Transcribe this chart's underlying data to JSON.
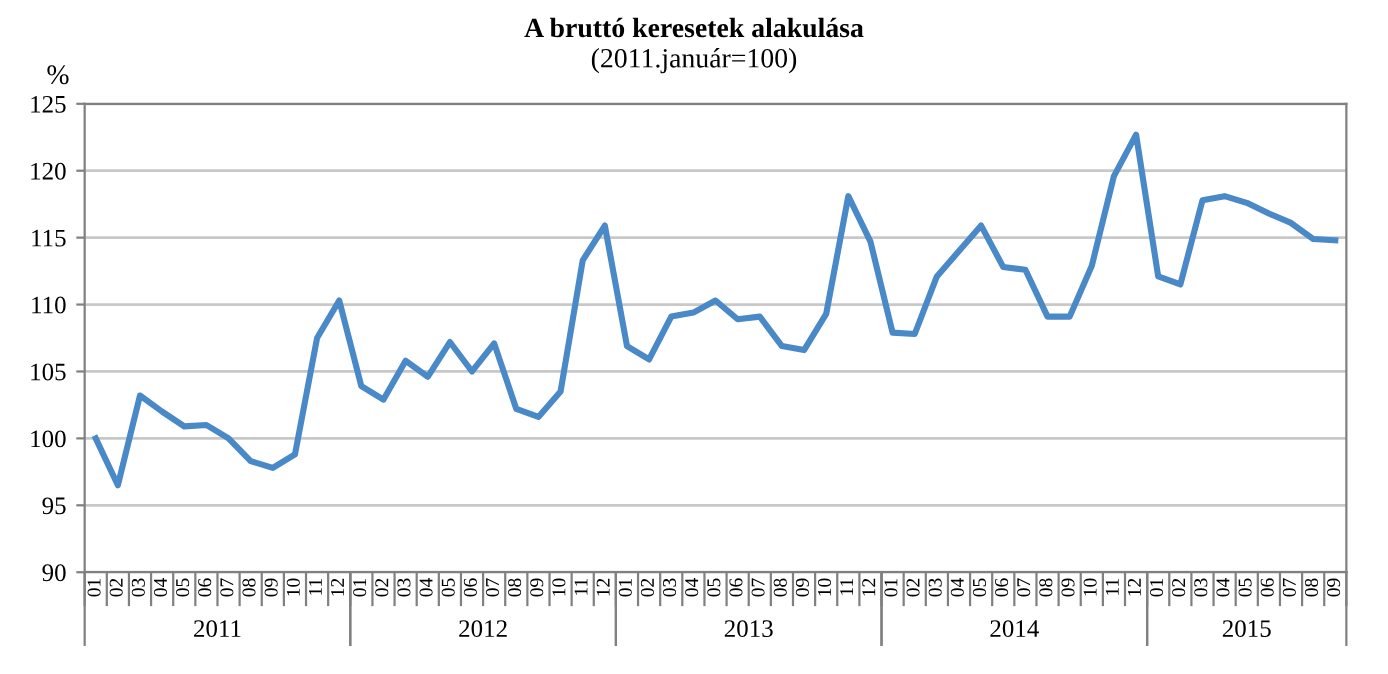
{
  "chart_data": {
    "type": "line",
    "title": "A bruttó keresetek alakulása",
    "subtitle": "(2011.január=100)",
    "ylabel": "%",
    "categories": [
      "01",
      "02",
      "03",
      "04",
      "05",
      "06",
      "07",
      "08",
      "09",
      "10",
      "11",
      "12",
      "01",
      "02",
      "03",
      "04",
      "05",
      "06",
      "07",
      "08",
      "09",
      "10",
      "11",
      "12",
      "01",
      "02",
      "03",
      "04",
      "05",
      "06",
      "07",
      "08",
      "09",
      "10",
      "11",
      "12",
      "01",
      "02",
      "03",
      "04",
      "05",
      "06",
      "07",
      "08",
      "09",
      "10",
      "11",
      "12",
      "01",
      "02",
      "03",
      "04",
      "05",
      "06",
      "07",
      "08",
      "09"
    ],
    "series": [
      {
        "color": "#4a89c8",
        "values": [
          100,
          96.5,
          103.2,
          102.0,
          100.9,
          101.0,
          100.0,
          98.3,
          97.8,
          98.8,
          107.5,
          110.3,
          103.9,
          102.9,
          105.8,
          104.6,
          107.2,
          105.0,
          107.1,
          102.2,
          101.6,
          103.5,
          113.3,
          115.9,
          106.9,
          105.9,
          109.1,
          109.4,
          110.3,
          108.9,
          109.1,
          106.9,
          106.6,
          109.3,
          118.1,
          114.7,
          107.9,
          107.8,
          112.1,
          114.0,
          115.9,
          112.8,
          112.6,
          109.1,
          109.1,
          112.9,
          119.6,
          122.7,
          112.1,
          111.5,
          117.8,
          118.1,
          117.6,
          116.8,
          116.1,
          114.9,
          114.8
        ]
      }
    ],
    "annotations": [
      "2011",
      "2012",
      "2013",
      "2014",
      "2015"
    ],
    "ylim": [
      90,
      125
    ],
    "yticks": [
      90,
      95,
      100,
      105,
      110,
      115,
      120,
      125
    ],
    "grid": "y",
    "legend": false,
    "marker": "none",
    "line_style": "solid"
  }
}
